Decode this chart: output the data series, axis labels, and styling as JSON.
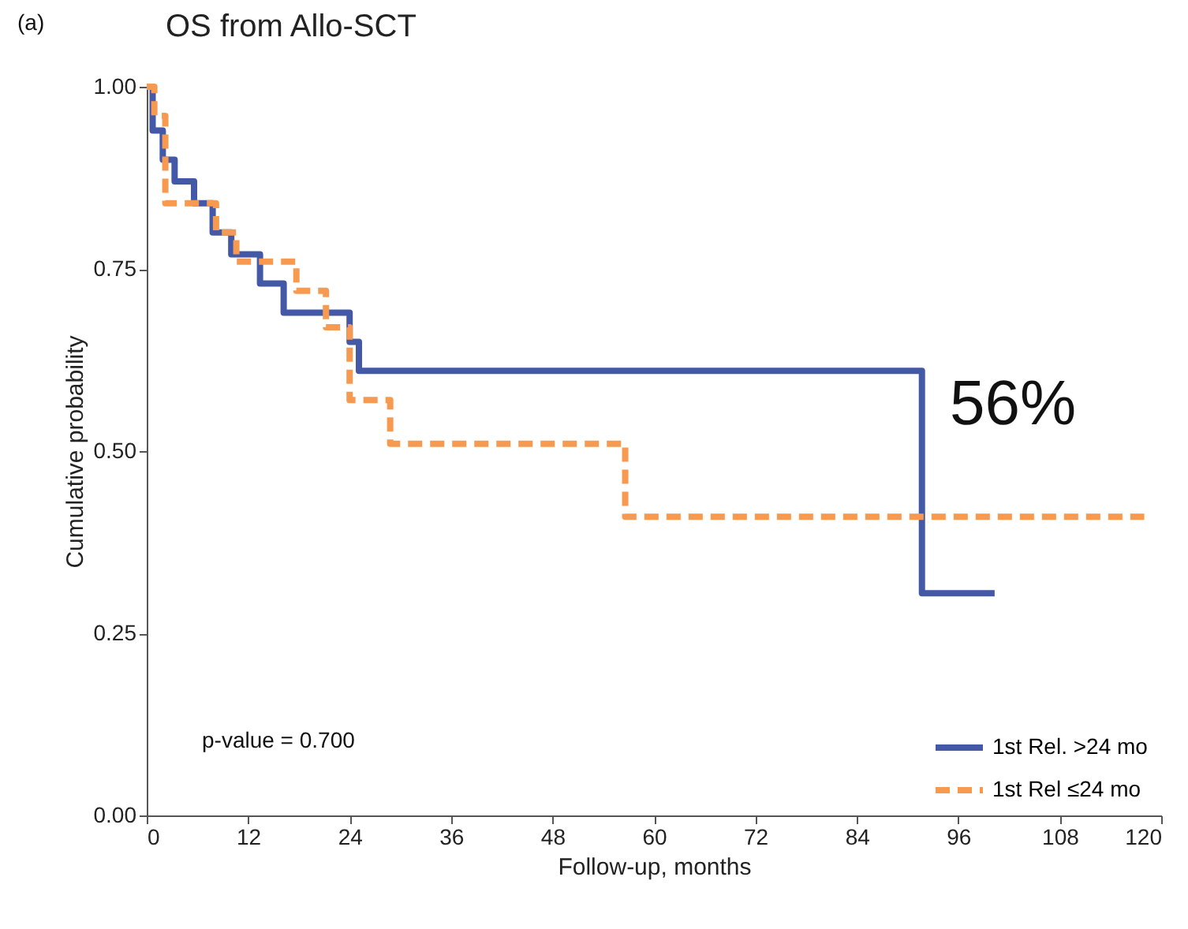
{
  "chart_data": {
    "type": "step",
    "title": "OS from Allo-SCT",
    "xlabel": "Follow-up, months",
    "ylabel": "Cumulative probability",
    "annotations": [
      "(a)",
      "56%",
      "p-value = 0.700"
    ],
    "series": [
      {
        "name": "1st Rel. >24 mo",
        "color": "#4458a8",
        "line_style": "solid",
        "x": [
          0,
          0.7,
          1.9,
          3.3,
          5.6,
          7.8,
          10,
          13.4,
          16.2,
          24,
          25.1,
          91.7,
          100.3
        ],
        "values": [
          1.0,
          0.94,
          0.9,
          0.87,
          0.84,
          0.8,
          0.77,
          0.73,
          0.69,
          0.65,
          0.61,
          0.305,
          0.305
        ]
      },
      {
        "name": "1st Rel ≤24 mo",
        "color": "#f79a50",
        "line_style": "dashed",
        "x": [
          0,
          0.9,
          2.2,
          8.2,
          10.6,
          17.7,
          21.2,
          24,
          28.8,
          56.6,
          118
        ],
        "values": [
          1.0,
          0.96,
          0.84,
          0.8,
          0.76,
          0.72,
          0.67,
          0.57,
          0.51,
          0.41,
          0.41
        ]
      }
    ],
    "xlim": [
      0,
      120
    ],
    "xticks": [
      0,
      12,
      24,
      36,
      48,
      60,
      72,
      84,
      96,
      108,
      120
    ],
    "ylim": [
      0,
      1
    ],
    "yticks": [
      {
        "value": 0,
        "label": "0.00"
      },
      {
        "value": 0.25,
        "label": "0.25"
      },
      {
        "value": 0.5,
        "label": "0.50"
      },
      {
        "value": 0.75,
        "label": "0.75"
      },
      {
        "value": 1,
        "label": "1.00"
      }
    ],
    "grid": false,
    "legend": "bottom right",
    "marker": "none"
  }
}
